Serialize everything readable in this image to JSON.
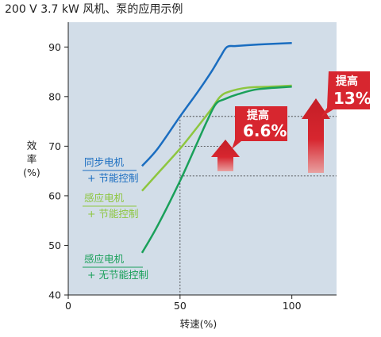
{
  "title": "200 V  3.7 kW   风机、泵的应用示例",
  "chart_data": {
    "type": "line",
    "xlabel": "转速(%)",
    "ylabel_lines": [
      "效",
      "率",
      "(%)"
    ],
    "xlim": [
      0,
      120
    ],
    "ylim": [
      40,
      95
    ],
    "xticks": [
      0,
      50,
      100
    ],
    "yticks": [
      40,
      50,
      60,
      70,
      80,
      90
    ],
    "grid": false,
    "background": "#d2dde8",
    "series": [
      {
        "name_lines": [
          "同步电机",
          "+ 节能控制"
        ],
        "color": "#1a6dc0",
        "x": [
          33,
          40,
          50,
          58,
          64,
          68,
          71,
          75,
          85,
          100
        ],
        "y": [
          66,
          69.5,
          76,
          81,
          85,
          88,
          90,
          90.2,
          90.5,
          90.8
        ]
      },
      {
        "name_lines": [
          "感应电机",
          "+ 节能控制"
        ],
        "color": "#8dc63f",
        "x": [
          33,
          40,
          50,
          58,
          64,
          68,
          72,
          80,
          90,
          100
        ],
        "y": [
          61,
          64.5,
          69.5,
          74,
          77.5,
          80,
          81,
          81.8,
          82,
          82.2
        ]
      },
      {
        "name_lines": [
          "感应电机",
          "+ 无节能控制"
        ],
        "color": "#1aa05a",
        "x": [
          33,
          40,
          50,
          57,
          62,
          66,
          70,
          76,
          85,
          100
        ],
        "y": [
          48.5,
          54,
          63,
          70,
          75,
          78.5,
          79.5,
          80.5,
          81.5,
          82
        ]
      }
    ],
    "reference_lines": {
      "v_x": 50,
      "h_y_top": 76,
      "h_y_mid": 70,
      "h_y_low": 64
    },
    "annotations": [
      {
        "line1": "提高",
        "line2": "6.6%"
      },
      {
        "line1": "提高",
        "line2": "13%"
      }
    ]
  }
}
